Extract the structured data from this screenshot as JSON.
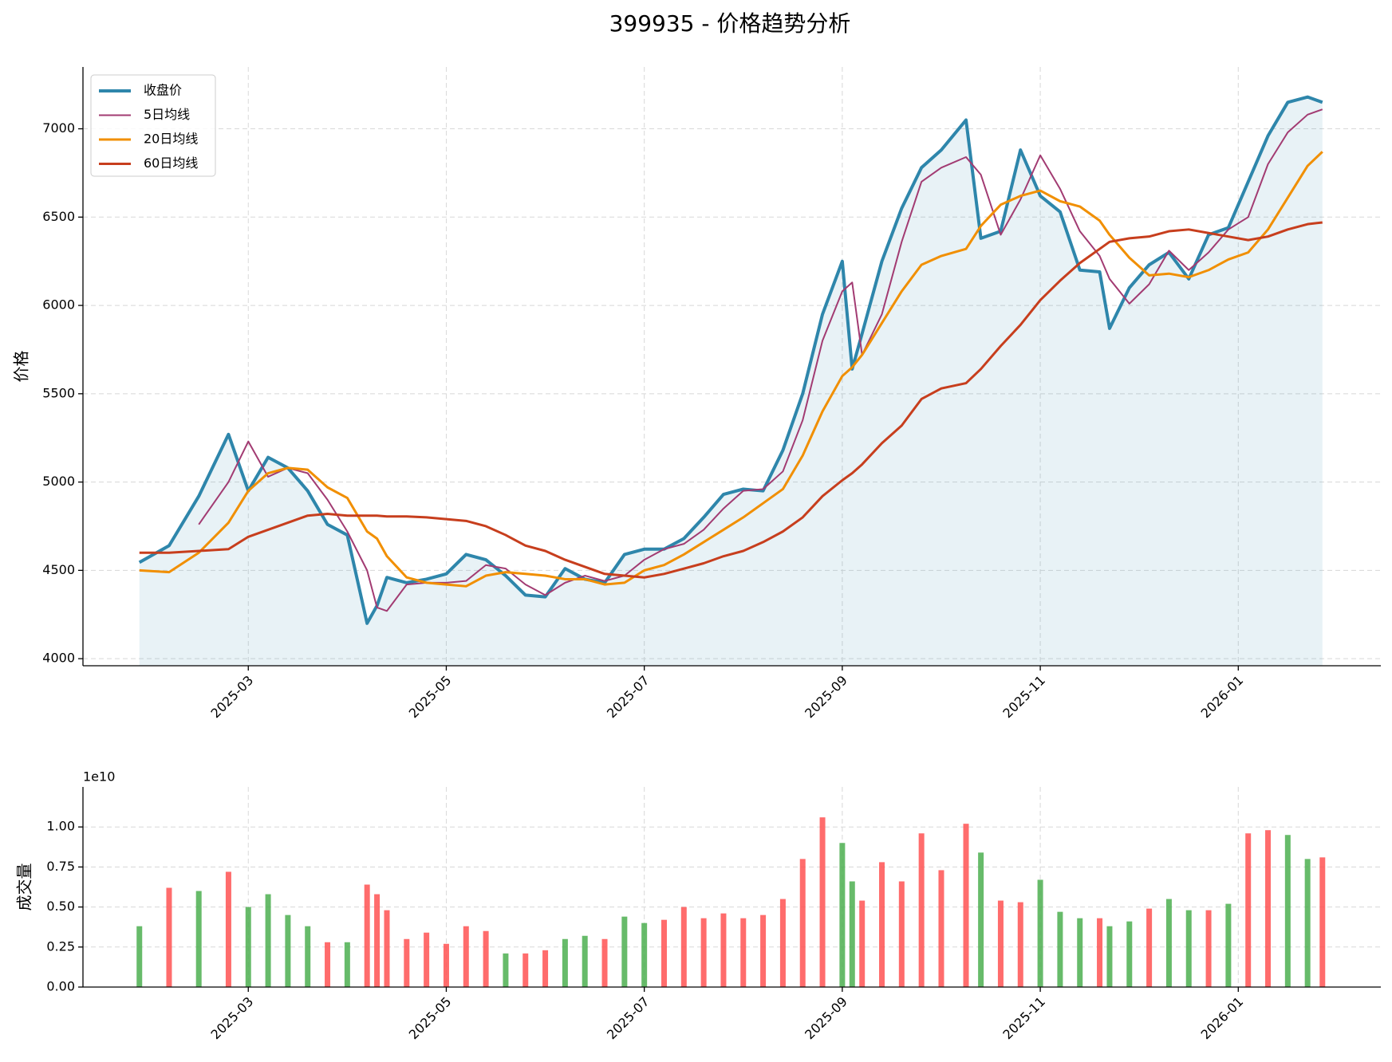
{
  "chart_data": [
    {
      "type": "line",
      "title": "399935 - 价格趋势分析",
      "ylabel": "价格",
      "x": [
        0.9,
        1.2,
        1.5,
        1.8,
        2.0,
        2.2,
        2.4,
        2.6,
        2.8,
        3.0,
        3.2,
        3.3,
        3.4,
        3.6,
        3.8,
        4.0,
        4.2,
        4.4,
        4.6,
        4.8,
        5.0,
        5.2,
        5.4,
        5.6,
        5.8,
        6.0,
        6.2,
        6.4,
        6.6,
        6.8,
        7.0,
        7.2,
        7.4,
        7.6,
        7.8,
        8.0,
        8.1,
        8.2,
        8.4,
        8.6,
        8.8,
        9.0,
        9.25,
        9.4,
        9.6,
        9.8,
        10.0,
        10.2,
        10.4,
        10.6,
        10.7,
        10.9,
        11.1,
        11.3,
        11.5,
        11.7,
        11.9,
        12.1,
        12.3,
        12.5,
        12.7,
        12.85
      ],
      "series": [
        {
          "name": "收盘价",
          "color": "#2e86ab",
          "width": 4,
          "fill": true,
          "values": [
            4545,
            4640,
            4920,
            5270,
            4950,
            5140,
            5080,
            4950,
            4760,
            4700,
            4200,
            4300,
            4460,
            4430,
            4450,
            4480,
            4590,
            4560,
            4470,
            4360,
            4350,
            4510,
            4450,
            4430,
            4590,
            4620,
            4620,
            4680,
            4800,
            4930,
            4960,
            4950,
            5180,
            5500,
            5950,
            6250,
            5640,
            5840,
            6250,
            6550,
            6780,
            6880,
            7050,
            6380,
            6420,
            6880,
            6620,
            6530,
            6200,
            6190,
            5870,
            6100,
            6230,
            6300,
            6150,
            6400,
            6440,
            6700,
            6960,
            7150,
            7180,
            7150
          ]
        },
        {
          "name": "5日均线",
          "color": "#a23b72",
          "width": 2,
          "values": [
            null,
            null,
            4760,
            5000,
            5230,
            5030,
            5080,
            5050,
            4900,
            4720,
            4500,
            4290,
            4270,
            4420,
            4430,
            4430,
            4440,
            4530,
            4510,
            4420,
            4360,
            4430,
            4470,
            4440,
            4470,
            4560,
            4620,
            4650,
            4730,
            4850,
            4950,
            4960,
            5060,
            5350,
            5800,
            6080,
            6130,
            5720,
            5950,
            6360,
            6700,
            6780,
            6840,
            6740,
            6400,
            6600,
            6850,
            6660,
            6420,
            6280,
            6150,
            6010,
            6120,
            6310,
            6200,
            6300,
            6430,
            6500,
            6800,
            6980,
            7080,
            7110
          ]
        },
        {
          "name": "20日均线",
          "color": "#f18f01",
          "width": 3,
          "values": [
            4500,
            4490,
            4600,
            4770,
            4950,
            5050,
            5080,
            5070,
            4970,
            4910,
            4720,
            4680,
            4580,
            4460,
            4430,
            4420,
            4410,
            4470,
            4490,
            4480,
            4470,
            4450,
            4450,
            4420,
            4430,
            4500,
            4530,
            4590,
            4660,
            4730,
            4800,
            4880,
            4960,
            5150,
            5400,
            5600,
            5650,
            5720,
            5900,
            6080,
            6230,
            6280,
            6320,
            6450,
            6570,
            6620,
            6650,
            6590,
            6560,
            6480,
            6400,
            6270,
            6170,
            6180,
            6160,
            6200,
            6260,
            6300,
            6430,
            6610,
            6790,
            6870
          ]
        },
        {
          "name": "60日均线",
          "color": "#c73e1d",
          "width": 3,
          "values": [
            4600,
            4600,
            4610,
            4620,
            4690,
            4730,
            4770,
            4810,
            4820,
            4810,
            4810,
            4810,
            4805,
            4805,
            4800,
            4790,
            4780,
            4750,
            4700,
            4640,
            4610,
            4560,
            4520,
            4480,
            4470,
            4460,
            4480,
            4510,
            4540,
            4580,
            4610,
            4660,
            4720,
            4800,
            4920,
            5010,
            5050,
            5100,
            5220,
            5320,
            5470,
            5530,
            5560,
            5640,
            5770,
            5890,
            6030,
            6140,
            6240,
            6320,
            6360,
            6380,
            6390,
            6420,
            6430,
            6410,
            6390,
            6370,
            6390,
            6430,
            6460,
            6470
          ]
        }
      ],
      "xlim": [
        0.33,
        13.44
      ],
      "xticks": [
        {
          "value": 2,
          "label": "2025-03"
        },
        {
          "value": 4,
          "label": "2025-05"
        },
        {
          "value": 6,
          "label": "2025-07"
        },
        {
          "value": 8,
          "label": "2025-09"
        },
        {
          "value": 10,
          "label": "2025-11"
        },
        {
          "value": 12,
          "label": "2026-01"
        }
      ],
      "ylim": [
        3960,
        7350
      ],
      "yticks": [
        4000,
        4500,
        5000,
        5500,
        6000,
        6500,
        7000
      ],
      "grid": true,
      "legend": "upper-left"
    },
    {
      "type": "bar",
      "ylabel": "成交量",
      "offset_label": "1e10",
      "x": [
        0.9,
        1.2,
        1.5,
        1.8,
        2.0,
        2.2,
        2.4,
        2.6,
        2.8,
        3.0,
        3.2,
        3.3,
        3.4,
        3.6,
        3.8,
        4.0,
        4.2,
        4.4,
        4.6,
        4.8,
        5.0,
        5.2,
        5.4,
        5.6,
        5.8,
        6.0,
        6.2,
        6.4,
        6.6,
        6.8,
        7.0,
        7.2,
        7.4,
        7.6,
        7.8,
        8.0,
        8.1,
        8.2,
        8.4,
        8.6,
        8.8,
        9.0,
        9.25,
        9.4,
        9.6,
        9.8,
        10.0,
        10.2,
        10.4,
        10.6,
        10.7,
        10.9,
        11.1,
        11.3,
        11.5,
        11.7,
        11.9,
        12.1,
        12.3,
        12.5,
        12.7,
        12.85
      ],
      "values": [
        0.38,
        0.62,
        0.6,
        0.72,
        0.5,
        0.58,
        0.45,
        0.38,
        0.28,
        0.28,
        0.64,
        0.58,
        0.48,
        0.3,
        0.34,
        0.27,
        0.38,
        0.35,
        0.21,
        0.21,
        0.23,
        0.3,
        0.32,
        0.3,
        0.44,
        0.4,
        0.42,
        0.5,
        0.43,
        0.46,
        0.43,
        0.45,
        0.55,
        0.8,
        1.06,
        0.9,
        0.66,
        0.54,
        0.78,
        0.66,
        0.96,
        0.73,
        1.02,
        0.84,
        0.54,
        0.53,
        0.67,
        0.47,
        0.43,
        0.43,
        0.38,
        0.41,
        0.49,
        0.55,
        0.48,
        0.48,
        0.52,
        0.96,
        0.98,
        0.95,
        0.8,
        0.81
      ],
      "colors": [
        "#4caf50",
        "#ff5252",
        "#4caf50",
        "#ff5252",
        "#4caf50",
        "#4caf50",
        "#4caf50",
        "#4caf50",
        "#ff5252",
        "#4caf50",
        "#ff5252",
        "#ff5252",
        "#ff5252",
        "#ff5252",
        "#ff5252",
        "#ff5252",
        "#ff5252",
        "#ff5252",
        "#4caf50",
        "#ff5252",
        "#ff5252",
        "#4caf50",
        "#4caf50",
        "#ff5252",
        "#4caf50",
        "#4caf50",
        "#ff5252",
        "#ff5252",
        "#ff5252",
        "#ff5252",
        "#ff5252",
        "#ff5252",
        "#ff5252",
        "#ff5252",
        "#ff5252",
        "#4caf50",
        "#4caf50",
        "#ff5252",
        "#ff5252",
        "#ff5252",
        "#ff5252",
        "#ff5252",
        "#ff5252",
        "#4caf50",
        "#ff5252",
        "#ff5252",
        "#4caf50",
        "#4caf50",
        "#4caf50",
        "#ff5252",
        "#4caf50",
        "#4caf50",
        "#ff5252",
        "#4caf50",
        "#4caf50",
        "#ff5252",
        "#4caf50",
        "#ff5252",
        "#ff5252",
        "#4caf50",
        "#4caf50",
        "#ff5252"
      ],
      "xlim": [
        0.33,
        13.44
      ],
      "xticks": [
        {
          "value": 2,
          "label": "2025-03"
        },
        {
          "value": 4,
          "label": "2025-05"
        },
        {
          "value": 6,
          "label": "2025-07"
        },
        {
          "value": 8,
          "label": "2025-09"
        },
        {
          "value": 10,
          "label": "2025-11"
        },
        {
          "value": 12,
          "label": "2026-01"
        }
      ],
      "ylim": [
        0,
        1.25
      ],
      "yticks": [
        {
          "value": 0,
          "label": "0.00"
        },
        {
          "value": 0.25,
          "label": "0.25"
        },
        {
          "value": 0.5,
          "label": "0.50"
        },
        {
          "value": 0.75,
          "label": "0.75"
        },
        {
          "value": 1.0,
          "label": "1.00"
        }
      ],
      "grid": true
    }
  ]
}
